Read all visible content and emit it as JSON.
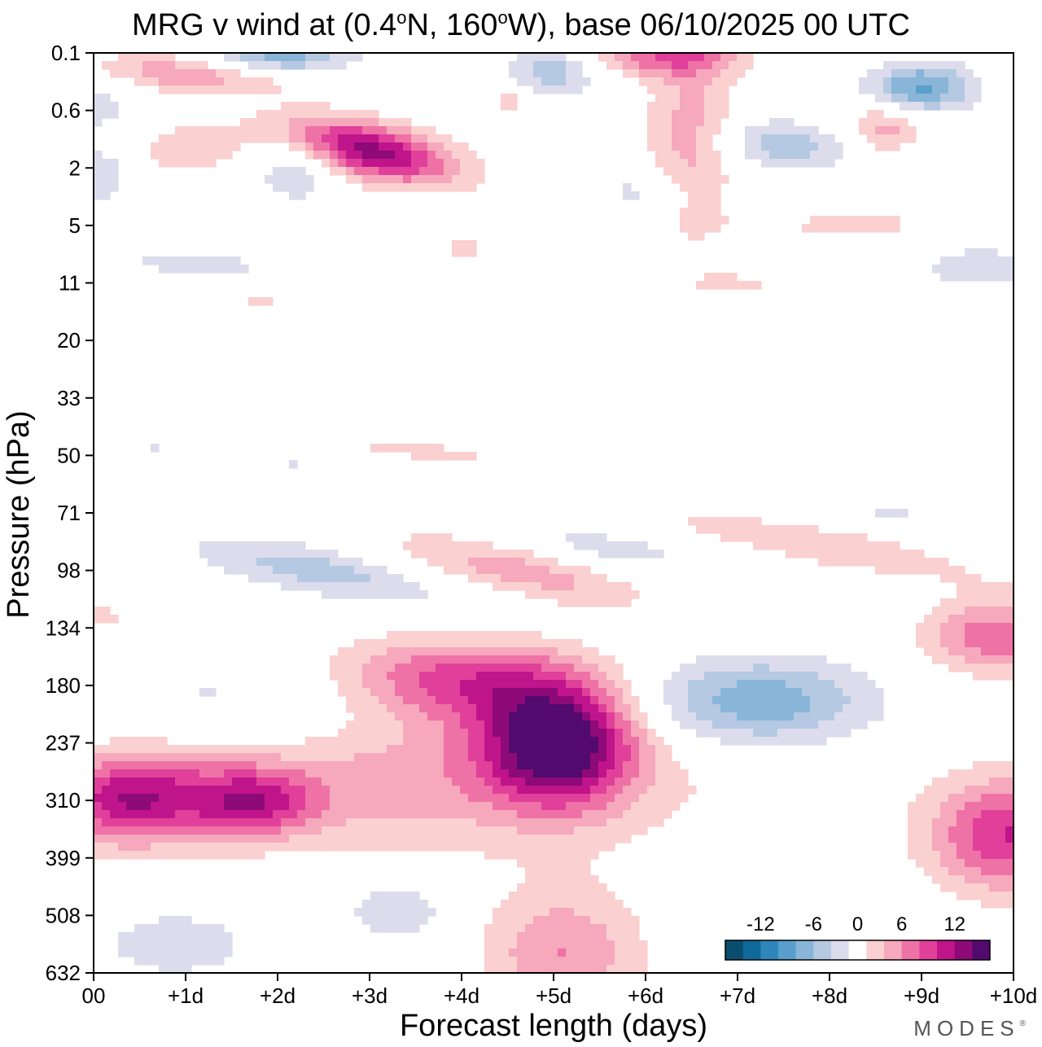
{
  "chart_data": {
    "type": "heatmap",
    "title": {
      "prefix": "MRG v wind at (0.4",
      "deg1": "o",
      "lat": "N, 160",
      "deg2": "o",
      "suffix": "W),  base 06/10/2025  00 UTC"
    },
    "xlabel": "Forecast length (days)",
    "ylabel": "Pressure (hPa)",
    "x_ticks": [
      "00",
      "+1d",
      "+2d",
      "+3d",
      "+4d",
      "+5d",
      "+6d",
      "+7d",
      "+8d",
      "+9d",
      "+10d"
    ],
    "xlim": [
      0,
      10
    ],
    "y_ticks": [
      "0.1",
      "0.6",
      "2",
      "5",
      "11",
      "20",
      "33",
      "50",
      "71",
      "98",
      "134",
      "180",
      "237",
      "310",
      "399",
      "508",
      "632"
    ],
    "colorbar": {
      "labels": [
        {
          "text": "-12",
          "value": -12
        },
        {
          "text": "-6",
          "value": -6
        },
        {
          "text": "0",
          "value": 0
        },
        {
          "text": "6",
          "value": 6
        },
        {
          "text": "12",
          "value": 12
        }
      ],
      "levels": [
        -14,
        -12,
        -10,
        -8,
        -6,
        -4,
        -2,
        2,
        4,
        6,
        8,
        10,
        12,
        14
      ],
      "colors": [
        "#0b4d6e",
        "#0f6a9a",
        "#2f86bb",
        "#5a9fcb",
        "#89b6d8",
        "#b5c9e2",
        "#dcdcec",
        "#ffffff",
        "#fbd0d0",
        "#f6a8bc",
        "#ef72a6",
        "#e0409a",
        "#c0148a",
        "#8e0a78",
        "#520a6e"
      ]
    },
    "features": [
      {
        "x": 0.3,
        "lev": 13.0,
        "amp": 9.0,
        "sx": 0.55,
        "sy": 0.55,
        "tilt": 0.0
      },
      {
        "x": 1.75,
        "lev": 13.05,
        "amp": 7.0,
        "sx": 0.45,
        "sy": 0.4,
        "tilt": 0.0
      },
      {
        "x": 1.1,
        "lev": 12.9,
        "amp": 4.5,
        "sx": 0.75,
        "sy": 0.55,
        "tilt": 0.0
      },
      {
        "x": 3.1,
        "lev": 12.7,
        "amp": 3.0,
        "sx": 1.1,
        "sy": 0.75,
        "tilt": 0.0
      },
      {
        "x": 5.05,
        "lev": 12.0,
        "amp": 15.5,
        "sx": 0.58,
        "sy": 0.75,
        "tilt": 0.0
      },
      {
        "x": 4.2,
        "lev": 11.0,
        "amp": 6.5,
        "sx": 0.8,
        "sy": 0.5,
        "tilt": 0.0
      },
      {
        "x": 3.4,
        "lev": 10.7,
        "amp": 3.0,
        "sx": 0.8,
        "sy": 0.45,
        "tilt": 0.0
      },
      {
        "x": 4.6,
        "lev": 12.6,
        "amp": 2.5,
        "sx": 2.3,
        "sy": 1.1,
        "tilt": 0.0
      },
      {
        "x": 7.2,
        "lev": 11.3,
        "amp": -8.0,
        "sx": 0.9,
        "sy": 0.55,
        "tilt": 0.0
      },
      {
        "x": 9.95,
        "lev": 13.6,
        "amp": 10.0,
        "sx": 0.6,
        "sy": 0.7,
        "tilt": 0.0
      },
      {
        "x": 9.8,
        "lev": 10.15,
        "amp": 7.5,
        "sx": 0.55,
        "sy": 0.45,
        "tilt": 0.0
      },
      {
        "x": 5.1,
        "lev": 15.7,
        "amp": 6.0,
        "sx": 0.6,
        "sy": 0.8,
        "tilt": 0.0
      },
      {
        "x": 0.9,
        "lev": 15.5,
        "amp": -4.0,
        "sx": 0.55,
        "sy": 0.38,
        "tilt": 0.0
      },
      {
        "x": 3.3,
        "lev": 14.9,
        "amp": -4.0,
        "sx": 0.4,
        "sy": 0.35,
        "tilt": 0.0
      },
      {
        "x": 1.5,
        "lev": 11.2,
        "amp": -2.6,
        "sx": 1.1,
        "sy": 0.6,
        "tilt": 0.15
      },
      {
        "x": 2.4,
        "lev": 9.0,
        "amp": -5.0,
        "sx": 0.95,
        "sy": 0.3,
        "tilt": 0.3
      },
      {
        "x": 4.6,
        "lev": 9.0,
        "amp": 5.0,
        "sx": 0.95,
        "sy": 0.3,
        "tilt": 0.35
      },
      {
        "x": 5.6,
        "lev": 8.6,
        "amp": -3.0,
        "sx": 0.7,
        "sy": 0.22,
        "tilt": 0.2
      },
      {
        "x": 7.8,
        "lev": 8.5,
        "amp": 3.5,
        "sx": 1.4,
        "sy": 0.3,
        "tilt": 0.3
      },
      {
        "x": 8.5,
        "lev": 8.0,
        "amp": -2.2,
        "sx": 1.2,
        "sy": 0.22,
        "tilt": 0.1
      },
      {
        "x": 3.0,
        "lev": 1.7,
        "amp": 13.0,
        "sx": 0.65,
        "sy": 0.35,
        "tilt": 0.3
      },
      {
        "x": 1.0,
        "lev": 0.35,
        "amp": 5.5,
        "sx": 0.75,
        "sy": 0.25,
        "tilt": 0.1
      },
      {
        "x": 1.0,
        "lev": 1.7,
        "amp": 3.0,
        "sx": 0.6,
        "sy": 0.4,
        "tilt": 0.0
      },
      {
        "x": 2.2,
        "lev": 2.0,
        "amp": -4.5,
        "sx": 0.35,
        "sy": 0.4,
        "tilt": 0.0
      },
      {
        "x": 0.05,
        "lev": 2.1,
        "amp": -4.0,
        "sx": 0.3,
        "sy": 0.4,
        "tilt": 0.0
      },
      {
        "x": 0.05,
        "lev": 0.9,
        "amp": -3.0,
        "sx": 0.3,
        "sy": 0.4,
        "tilt": 0.0
      },
      {
        "x": 2.0,
        "lev": 0.05,
        "amp": -7.5,
        "sx": 0.55,
        "sy": 0.2,
        "tilt": 0.0
      },
      {
        "x": 5.0,
        "lev": 0.3,
        "amp": -5.5,
        "sx": 0.35,
        "sy": 0.3,
        "tilt": 0.0
      },
      {
        "x": 6.5,
        "lev": 1.5,
        "amp": 5.0,
        "sx": 0.35,
        "sy": 1.2,
        "tilt": 0.0
      },
      {
        "x": 6.2,
        "lev": 0.05,
        "amp": 7.0,
        "sx": 0.6,
        "sy": 0.25,
        "tilt": 0.0
      },
      {
        "x": 7.5,
        "lev": 1.6,
        "amp": -5.5,
        "sx": 0.5,
        "sy": 0.3,
        "tilt": 0.1
      },
      {
        "x": 9.0,
        "lev": 0.6,
        "amp": -8.5,
        "sx": 0.4,
        "sy": 0.3,
        "tilt": 0.0
      },
      {
        "x": 8.6,
        "lev": 1.3,
        "amp": 5.0,
        "sx": 0.3,
        "sy": 0.3,
        "tilt": 0.0
      },
      {
        "x": 6.0,
        "lev": 2.4,
        "amp": -3.0,
        "sx": 0.4,
        "sy": 0.3,
        "tilt": 0.0
      },
      {
        "x": 4.5,
        "lev": 0.8,
        "amp": 3.0,
        "sx": 0.15,
        "sy": 0.2,
        "tilt": 0.0
      },
      {
        "x": 8.4,
        "lev": 3.0,
        "amp": 2.8,
        "sx": 0.9,
        "sy": 0.25,
        "tilt": 0.0
      },
      {
        "x": 1.2,
        "lev": 3.7,
        "amp": -2.5,
        "sx": 1.0,
        "sy": 0.25,
        "tilt": 0.1
      },
      {
        "x": 9.6,
        "lev": 3.7,
        "amp": -2.5,
        "sx": 0.7,
        "sy": 0.5,
        "tilt": 0.0
      },
      {
        "x": 7.0,
        "lev": 4.0,
        "amp": 2.3,
        "sx": 0.5,
        "sy": 0.15,
        "tilt": 0.0
      },
      {
        "x": 4.0,
        "lev": 3.4,
        "amp": 2.3,
        "sx": 0.6,
        "sy": 0.15,
        "tilt": 0.0
      },
      {
        "x": 1.8,
        "lev": 4.3,
        "amp": 2.3,
        "sx": 0.4,
        "sy": 0.25,
        "tilt": 0.0
      },
      {
        "x": 0.7,
        "lev": 6.8,
        "amp": -2.2,
        "sx": 0.15,
        "sy": 0.2,
        "tilt": 0.0
      },
      {
        "x": 3.5,
        "lev": 6.9,
        "amp": 2.3,
        "sx": 1.2,
        "sy": 0.2,
        "tilt": 0.2
      },
      {
        "x": 2.2,
        "lev": 7.2,
        "amp": -2.2,
        "sx": 0.3,
        "sy": 0.15,
        "tilt": 0.0
      },
      {
        "x": 0.1,
        "lev": 9.8,
        "amp": 2.4,
        "sx": 0.3,
        "sy": 0.3,
        "tilt": 0.0
      }
    ]
  },
  "branding": {
    "logo_text": "MODES",
    "mark": "®"
  }
}
